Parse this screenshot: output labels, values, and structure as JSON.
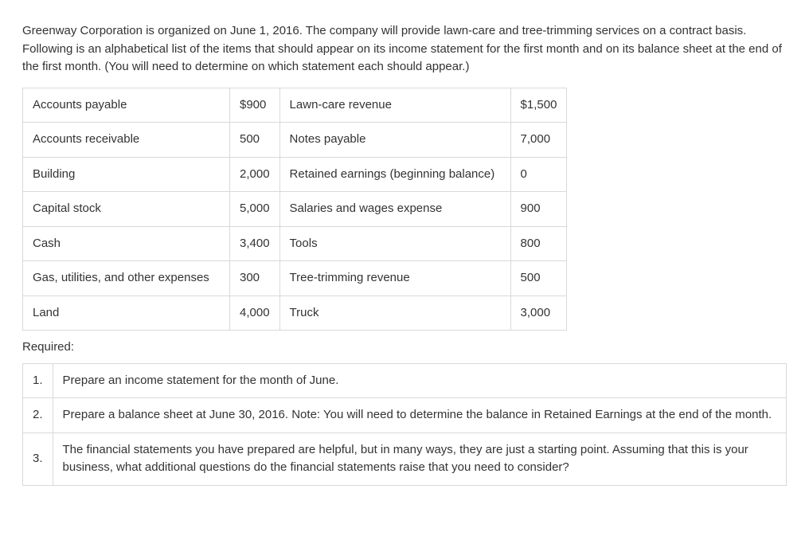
{
  "intro": "Greenway Corporation is organized on June 1, 2016. The company will provide lawn-care and tree-trimming services on a contract basis. Following is an alphabetical list of the items that should appear on its income statement for the first month and on its balance sheet at the end of the first month. (You will need to determine on which statement each should appear.)",
  "data_table": {
    "rows": [
      {
        "label1": "Accounts payable",
        "value1": "$900",
        "label2": "Lawn-care revenue",
        "value2": "$1,500"
      },
      {
        "label1": "Accounts receivable",
        "value1": "500",
        "label2": "Notes payable",
        "value2": "7,000"
      },
      {
        "label1": "Building",
        "value1": "2,000",
        "label2": "Retained earnings (beginning balance)",
        "value2": "0"
      },
      {
        "label1": "Capital stock",
        "value1": "5,000",
        "label2": "Salaries and wages expense",
        "value2": "900"
      },
      {
        "label1": "Cash",
        "value1": "3,400",
        "label2": "Tools",
        "value2": "800"
      },
      {
        "label1": "Gas, utilities, and other expenses",
        "value1": "300",
        "label2": "Tree-trimming revenue",
        "value2": "500"
      },
      {
        "label1": "Land",
        "value1": "4,000",
        "label2": "Truck",
        "value2": "3,000"
      }
    ]
  },
  "required_label": "Required:",
  "required_table": {
    "rows": [
      {
        "num": "1.",
        "text": "Prepare an income statement for the month of June."
      },
      {
        "num": "2.",
        "text": "Prepare a balance sheet at June 30, 2016. Note: You will need to determine the balance in Retained Earnings at the end of the month."
      },
      {
        "num": "3.",
        "text": "The financial statements you have prepared are helpful, but in many ways, they are just a starting point. Assuming that this is your business, what additional questions do the financial statements raise that you need to consider?"
      }
    ]
  },
  "colors": {
    "text": "#333333",
    "border": "#d9d9d9",
    "background": "#ffffff"
  }
}
